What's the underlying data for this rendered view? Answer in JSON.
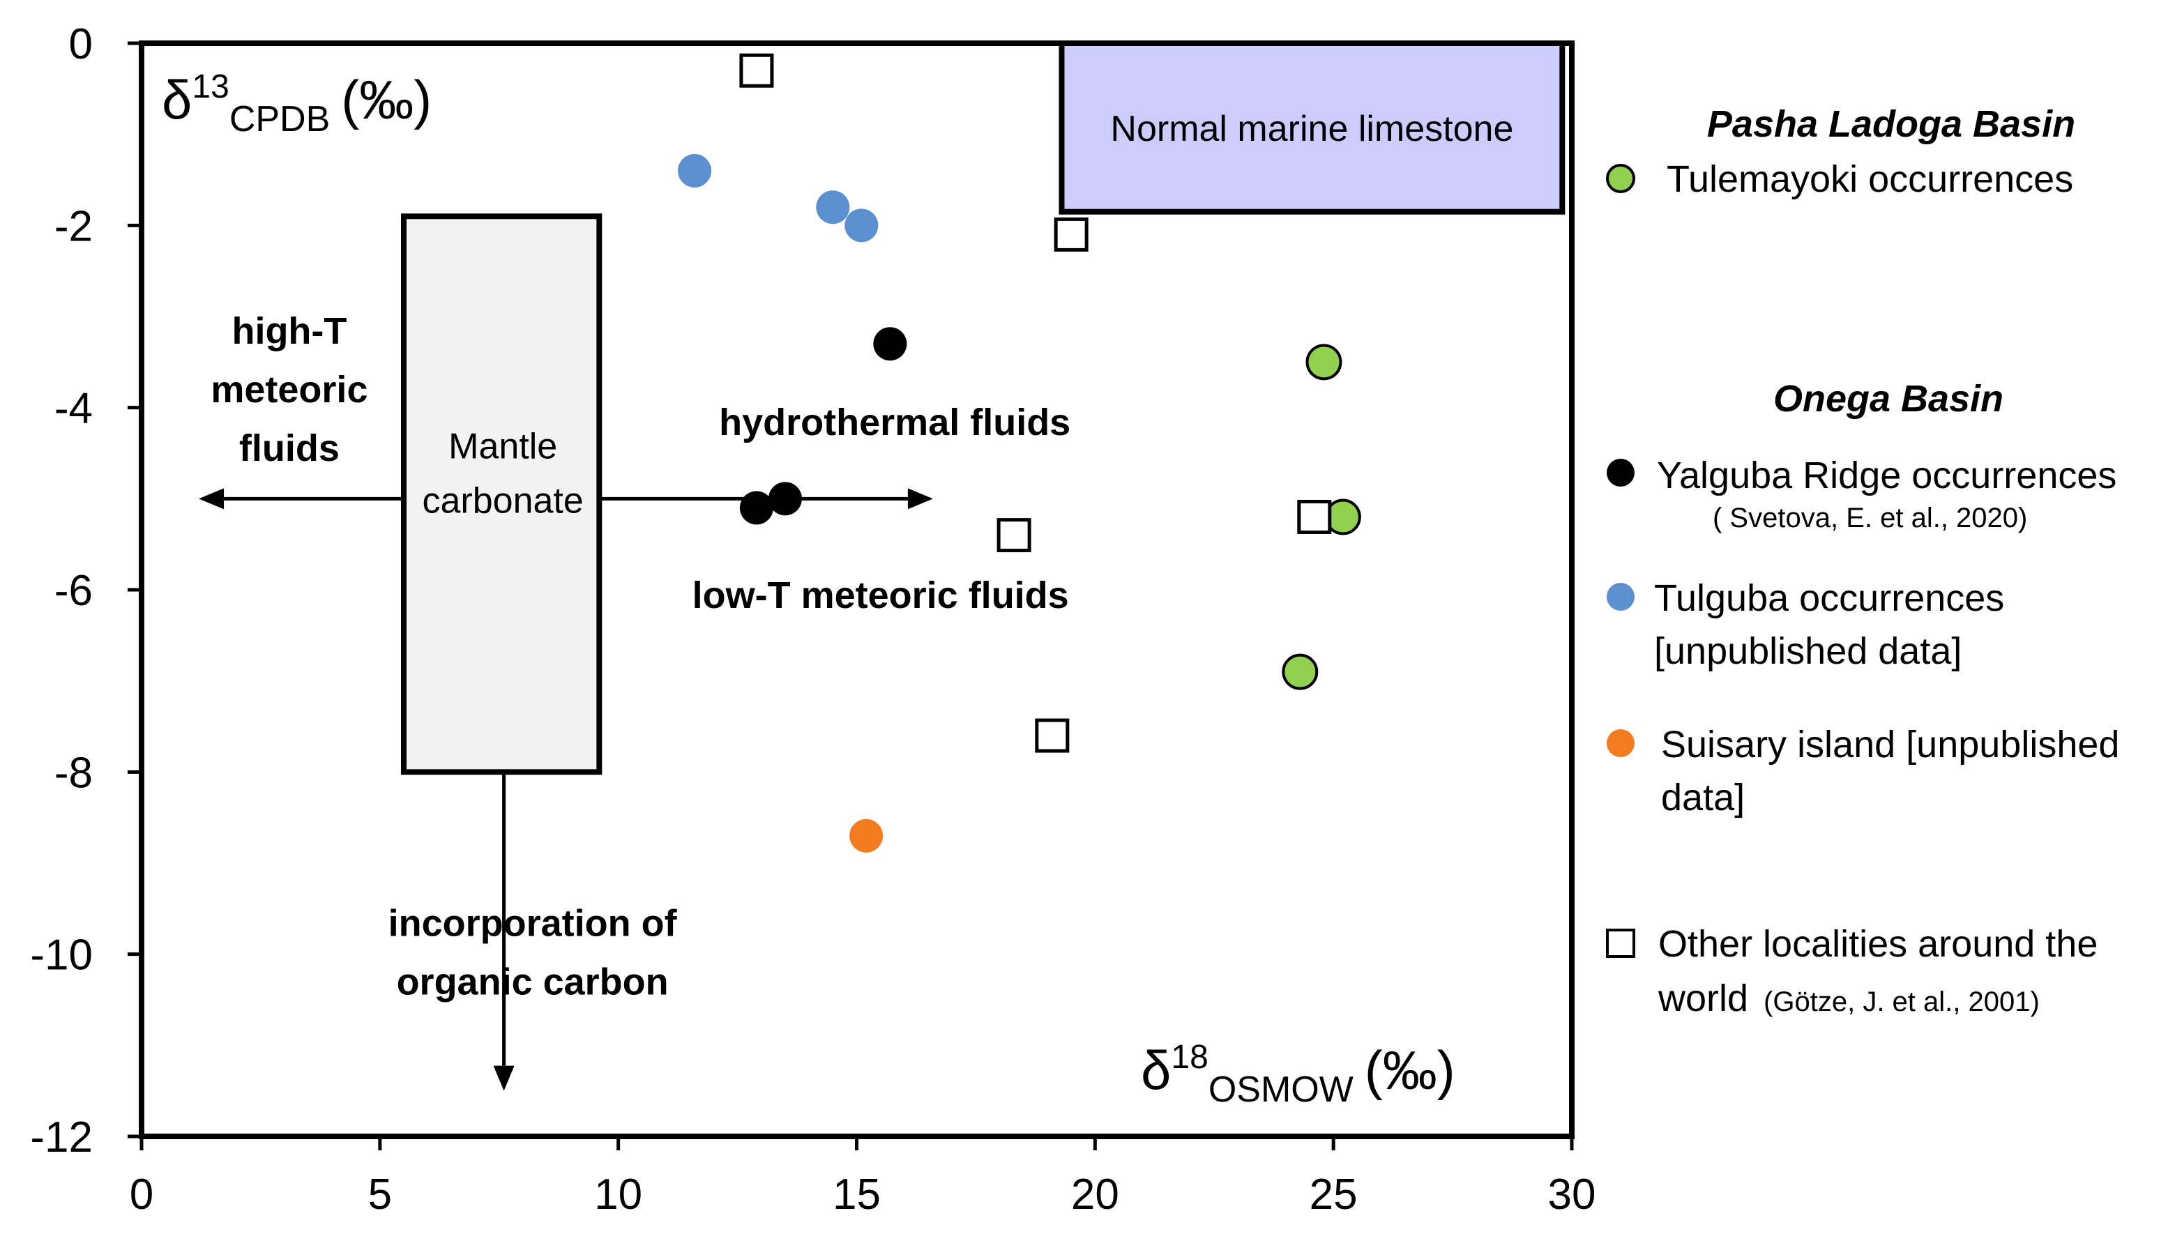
{
  "chart_data": {
    "type": "scatter",
    "xlabel": {
      "main": "δ",
      "sup": "18",
      "sub": "OSMOW",
      "unit": "(‰)"
    },
    "ylabel": {
      "main": "δ",
      "sup": "13",
      "sub": "CPDB",
      "unit": "(‰)"
    },
    "xlim": [
      0,
      30
    ],
    "ylim": [
      -12,
      0
    ],
    "x_ticks": [
      0,
      5,
      10,
      15,
      20,
      25,
      30
    ],
    "y_ticks": [
      0,
      -2,
      -4,
      -6,
      -8,
      -10,
      -12
    ],
    "grid": false,
    "legend_position": "right",
    "series": [
      {
        "name": "Tulemayoki occurrences",
        "group": "Pasha Ladoga Basin",
        "marker": "circle",
        "color": "#92d050",
        "points": [
          [
            24.8,
            -3.5
          ],
          [
            25.2,
            -5.2
          ],
          [
            24.3,
            -6.9
          ]
        ]
      },
      {
        "name": "Yalguba Ridge occurrences",
        "group": "Onega Basin",
        "marker": "circle",
        "color": "#000000",
        "points": [
          [
            15.7,
            -3.3
          ],
          [
            13.5,
            -5.0
          ],
          [
            12.9,
            -5.1
          ]
        ]
      },
      {
        "name": "Tulguba occurrences [unpublished data]",
        "group": "Onega Basin",
        "marker": "circle",
        "color": "#5b8fd0",
        "points": [
          [
            11.6,
            -1.4
          ],
          [
            14.5,
            -1.8
          ],
          [
            15.1,
            -2.0
          ]
        ]
      },
      {
        "name": "Suisary island [unpublished data]",
        "group": "Onega Basin",
        "marker": "circle",
        "color": "#f47c20",
        "points": [
          [
            15.2,
            -8.7
          ]
        ]
      },
      {
        "name": "Other localities around the world (Götze, J. et al., 2001)",
        "group": "",
        "marker": "square",
        "color": "#ffffff",
        "points": [
          [
            12.9,
            -0.3
          ],
          [
            19.5,
            -2.1
          ],
          [
            18.3,
            -5.4
          ],
          [
            24.6,
            -5.2
          ],
          [
            19.1,
            -7.6
          ]
        ]
      }
    ],
    "regions": [
      {
        "name": "normal-marine-limestone",
        "label": "Normal marine limestone",
        "x": [
          19.3,
          29.8
        ],
        "y": [
          -1.85,
          0
        ],
        "fill": "#ccccff"
      },
      {
        "name": "mantle-carbonate",
        "label_lines": [
          "Mantle",
          "carbonate"
        ],
        "x": [
          5.5,
          9.6
        ],
        "y": [
          -8.0,
          -1.9
        ],
        "fill": "#f2f2f2"
      }
    ],
    "arrows": [
      {
        "name": "arrow-high-t",
        "from": [
          5.5,
          -5.0
        ],
        "to": [
          1.2,
          -5.0
        ]
      },
      {
        "name": "arrow-hydrothermal",
        "from": [
          9.6,
          -5.0
        ],
        "to": [
          16.6,
          -5.0
        ]
      },
      {
        "name": "arrow-organic",
        "from": [
          7.6,
          -8.0
        ],
        "to": [
          7.6,
          -11.5
        ]
      }
    ],
    "annotations": [
      {
        "name": "high-t-note",
        "lines": [
          "high-T",
          "meteoric",
          "fluids"
        ],
        "at": [
          3.1,
          -3.3
        ]
      },
      {
        "name": "hydrothermal-note",
        "lines": [
          "hydrothermal fluids"
        ],
        "at": [
          15.8,
          -4.3
        ]
      },
      {
        "name": "low-t-note",
        "lines": [
          "low-T meteoric fluids"
        ],
        "at": [
          15.5,
          -6.2
        ]
      },
      {
        "name": "organic-note",
        "lines": [
          "incorporation of",
          "organic carbon"
        ],
        "at": [
          8.2,
          -9.8
        ]
      }
    ]
  },
  "legend": {
    "pasha_heading": "Pasha Ladoga Basin",
    "tulemayoki": "Tulemayoki occurrences",
    "onega_heading": "Onega Basin",
    "yalguba": "Yalguba Ridge occurrences",
    "yalguba_ref": "( Svetova, E. et al., 2020)",
    "tulguba_1": "Tulguba  occurrences",
    "tulguba_2": "[unpublished data]",
    "suisary_1": "Suisary island [unpublished",
    "suisary_2": "data]",
    "other_1": "Other localities around the",
    "other_2": "world",
    "other_ref": "(Götze, J.  et al., 2001)"
  }
}
